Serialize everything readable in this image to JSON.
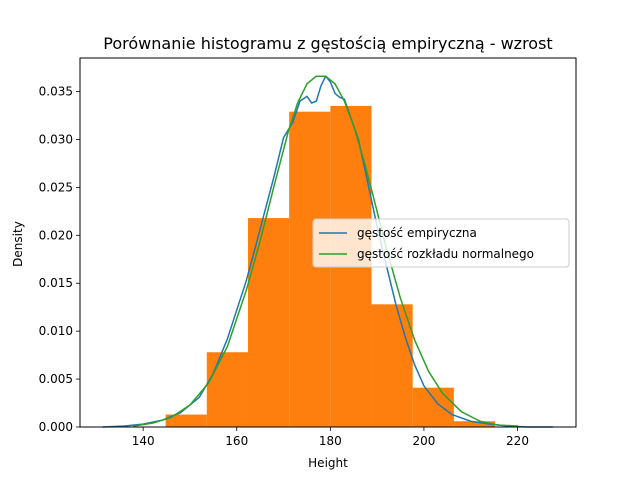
{
  "chart_data": {
    "type": "histogram",
    "title": "Porównanie histogramu z gęstością empiryczną - wzrost",
    "xlabel": "Height",
    "ylabel": "Density",
    "xlim": [
      126.5,
      232.5
    ],
    "ylim": [
      0.0,
      0.0385
    ],
    "xticks": [
      140,
      160,
      180,
      200,
      220
    ],
    "yticks": [
      0.0,
      0.005,
      0.01,
      0.015,
      0.02,
      0.025,
      0.03,
      0.035
    ],
    "xtick_labels": [
      "140",
      "160",
      "180",
      "200",
      "220"
    ],
    "ytick_labels": [
      "0.000",
      "0.005",
      "0.010",
      "0.015",
      "0.020",
      "0.025",
      "0.030",
      "0.035"
    ],
    "grid": false,
    "legend_position": "center-right",
    "histogram": {
      "color": "#ff7f0e",
      "bins": [
        {
          "x0": 144.8,
          "x1": 153.6,
          "density": 0.0013
        },
        {
          "x0": 153.6,
          "x1": 162.4,
          "density": 0.0078
        },
        {
          "x0": 162.4,
          "x1": 171.2,
          "density": 0.0218
        },
        {
          "x0": 171.2,
          "x1": 180.0,
          "density": 0.0329
        },
        {
          "x0": 180.0,
          "x1": 188.8,
          "density": 0.0335
        },
        {
          "x0": 188.8,
          "x1": 197.6,
          "density": 0.0128
        },
        {
          "x0": 197.6,
          "x1": 206.4,
          "density": 0.0041
        },
        {
          "x0": 206.4,
          "x1": 215.2,
          "density": 0.0006
        }
      ]
    },
    "series": [
      {
        "name": "gęstość empiryczna",
        "color": "#1f77b4",
        "x": [
          131.4,
          136,
          140,
          144,
          148,
          152,
          155,
          158,
          160,
          162,
          164,
          166,
          168,
          170,
          172,
          173.5,
          175,
          176,
          177,
          178,
          179,
          180,
          181,
          182,
          183,
          184,
          186,
          188,
          190,
          192,
          194,
          196,
          198,
          200,
          203,
          206,
          210,
          214,
          218,
          222,
          227.5
        ],
        "y": [
          0.0,
          0.0001,
          0.0003,
          0.0007,
          0.0015,
          0.0031,
          0.0056,
          0.0092,
          0.0122,
          0.0152,
          0.0188,
          0.0225,
          0.0262,
          0.0302,
          0.0318,
          0.034,
          0.0345,
          0.0338,
          0.034,
          0.0356,
          0.0366,
          0.036,
          0.0348,
          0.0344,
          0.0342,
          0.0328,
          0.03,
          0.0255,
          0.0209,
          0.0168,
          0.0128,
          0.0094,
          0.0065,
          0.0043,
          0.0024,
          0.0013,
          0.0006,
          0.0003,
          0.0001,
          0.0,
          0.0
        ]
      },
      {
        "name": "gęstość rozkładu normalnego",
        "color": "#2ca02c",
        "x": [
          138,
          142,
          146,
          150,
          154,
          158,
          162,
          165,
          168,
          171,
          173,
          175,
          177,
          179,
          181,
          183,
          185,
          187,
          189,
          192,
          195,
          198,
          201,
          204,
          208,
          212,
          216,
          220
        ],
        "y": [
          0.0001,
          0.0004,
          0.001,
          0.0023,
          0.0046,
          0.0084,
          0.0142,
          0.0194,
          0.0252,
          0.0308,
          0.0338,
          0.0358,
          0.0366,
          0.0366,
          0.0358,
          0.034,
          0.0314,
          0.0281,
          0.0244,
          0.0186,
          0.0134,
          0.0091,
          0.0058,
          0.0035,
          0.0016,
          0.0006,
          0.0002,
          0.0001
        ]
      }
    ]
  }
}
